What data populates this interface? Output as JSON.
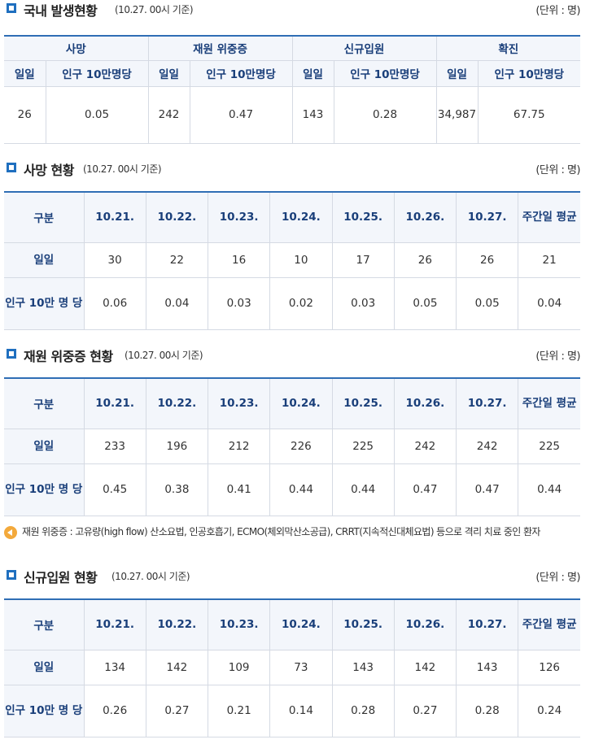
{
  "summary": {
    "title": "국내 발생현황",
    "note": "(10.27. 00시 기준)",
    "unit": "(단위 : 명)",
    "groups": [
      "사망",
      "재원 위중증",
      "신규입원",
      "확진"
    ],
    "sub_daily": "일일",
    "sub_per100k": "인구 10만명당",
    "values": [
      "26",
      "0.05",
      "242",
      "0.47",
      "143",
      "0.28",
      "34,987",
      "67.75"
    ]
  },
  "death": {
    "title": "사망 현황",
    "note": "(10.27. 00시 기준)",
    "unit": "(단위 : 명)",
    "header": [
      "구분",
      "10.21.",
      "10.22.",
      "10.23.",
      "10.24.",
      "10.25.",
      "10.26.",
      "10.27.",
      "주간일 평균"
    ],
    "rows": [
      {
        "label": "일일",
        "values": [
          "30",
          "22",
          "16",
          "10",
          "17",
          "26",
          "26",
          "21"
        ]
      },
      {
        "label": "인구 10만 명 당",
        "values": [
          "0.06",
          "0.04",
          "0.03",
          "0.02",
          "0.03",
          "0.05",
          "0.05",
          "0.04"
        ]
      }
    ]
  },
  "severe": {
    "title": "재원 위중증 현황",
    "note": "(10.27. 00시 기준)",
    "unit": "(단위 : 명)",
    "header": [
      "구분",
      "10.21.",
      "10.22.",
      "10.23.",
      "10.24.",
      "10.25.",
      "10.26.",
      "10.27.",
      "주간일 평균"
    ],
    "rows": [
      {
        "label": "일일",
        "values": [
          "233",
          "196",
          "212",
          "226",
          "225",
          "242",
          "242",
          "225"
        ]
      },
      {
        "label": "인구 10만 명 당",
        "values": [
          "0.45",
          "0.38",
          "0.41",
          "0.44",
          "0.44",
          "0.47",
          "0.47",
          "0.44"
        ]
      }
    ]
  },
  "footnote": "재원 위중증 : 고유량(high flow) 산소요법, 인공호흡기, ECMO(체외막산소공급), CRRT(지속적신대체요법) 등으로 격리 치료 중인 환자",
  "admission": {
    "title": "신규입원 현황",
    "note": "(10.27. 00시 기준)",
    "unit": "(단위 : 명)",
    "header": [
      "구분",
      "10.21.",
      "10.22.",
      "10.23.",
      "10.24.",
      "10.25.",
      "10.26.",
      "10.27.",
      "주간일 평균"
    ],
    "rows": [
      {
        "label": "일일",
        "values": [
          "134",
          "142",
          "109",
          "73",
          "143",
          "142",
          "143",
          "126"
        ]
      },
      {
        "label": "인구 10만 명 당",
        "values": [
          "0.26",
          "0.27",
          "0.21",
          "0.14",
          "0.28",
          "0.27",
          "0.28",
          "0.24"
        ]
      }
    ]
  }
}
